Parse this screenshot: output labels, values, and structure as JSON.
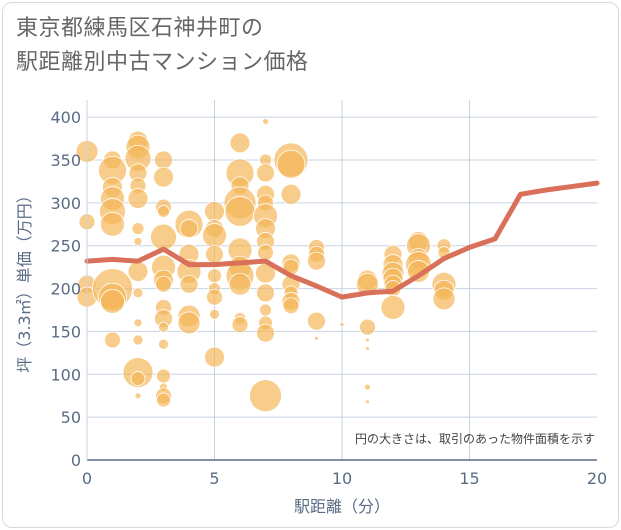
{
  "chart_data": {
    "type": "scatter",
    "title_lines": [
      "東京都練馬区石神井町の",
      "駅距離別中古マンション価格"
    ],
    "xlabel": "駅距離（分）",
    "ylabel": "坪（3.3㎡）単価（万円）",
    "xlim": [
      0,
      20
    ],
    "ylim": [
      0,
      420
    ],
    "x_ticks": [
      0,
      5,
      10,
      15,
      20
    ],
    "y_ticks": [
      0,
      50,
      100,
      150,
      200,
      250,
      300,
      350,
      400
    ],
    "note": "円の大きさは、取引のあった物件面積を示す",
    "colors": {
      "bubble": "#f5b65a",
      "line": "#d9705a",
      "grid": "#c8d3e0"
    },
    "average_line": {
      "x": [
        0,
        1,
        2,
        3,
        4,
        5,
        6,
        7,
        8,
        9,
        10,
        11,
        12,
        13,
        14,
        15,
        16,
        17,
        18,
        19,
        20
      ],
      "y": [
        232,
        234,
        232,
        246,
        228,
        228,
        230,
        232,
        215,
        203,
        190,
        195,
        197,
        215,
        235,
        248,
        258,
        310,
        315,
        319,
        323
      ]
    },
    "bubbles": [
      {
        "x": 0,
        "y": 360,
        "s": 11
      },
      {
        "x": 0,
        "y": 278,
        "s": 8
      },
      {
        "x": 0,
        "y": 205,
        "s": 9
      },
      {
        "x": 0,
        "y": 190,
        "s": 10
      },
      {
        "x": 1,
        "y": 350,
        "s": 9
      },
      {
        "x": 1,
        "y": 338,
        "s": 14
      },
      {
        "x": 1,
        "y": 318,
        "s": 10
      },
      {
        "x": 1,
        "y": 305,
        "s": 12
      },
      {
        "x": 1,
        "y": 290,
        "s": 13
      },
      {
        "x": 1,
        "y": 275,
        "s": 12
      },
      {
        "x": 1,
        "y": 200,
        "s": 20
      },
      {
        "x": 1,
        "y": 190,
        "s": 14
      },
      {
        "x": 1,
        "y": 185,
        "s": 12
      },
      {
        "x": 1,
        "y": 140,
        "s": 8
      },
      {
        "x": 2,
        "y": 372,
        "s": 10
      },
      {
        "x": 2,
        "y": 365,
        "s": 12
      },
      {
        "x": 2,
        "y": 352,
        "s": 13
      },
      {
        "x": 2,
        "y": 335,
        "s": 9
      },
      {
        "x": 2,
        "y": 320,
        "s": 8
      },
      {
        "x": 2,
        "y": 305,
        "s": 10
      },
      {
        "x": 2,
        "y": 270,
        "s": 6
      },
      {
        "x": 2,
        "y": 255,
        "s": 4
      },
      {
        "x": 2,
        "y": 220,
        "s": 10
      },
      {
        "x": 2,
        "y": 195,
        "s": 5
      },
      {
        "x": 2,
        "y": 160,
        "s": 4
      },
      {
        "x": 2,
        "y": 140,
        "s": 5
      },
      {
        "x": 2,
        "y": 102,
        "s": 15
      },
      {
        "x": 2,
        "y": 95,
        "s": 7
      },
      {
        "x": 2,
        "y": 75,
        "s": 3
      },
      {
        "x": 3,
        "y": 350,
        "s": 9
      },
      {
        "x": 3,
        "y": 330,
        "s": 10
      },
      {
        "x": 3,
        "y": 295,
        "s": 8
      },
      {
        "x": 3,
        "y": 290,
        "s": 6
      },
      {
        "x": 3,
        "y": 260,
        "s": 13
      },
      {
        "x": 3,
        "y": 225,
        "s": 12
      },
      {
        "x": 3,
        "y": 210,
        "s": 10
      },
      {
        "x": 3,
        "y": 205,
        "s": 8
      },
      {
        "x": 3,
        "y": 178,
        "s": 8
      },
      {
        "x": 3,
        "y": 165,
        "s": 9
      },
      {
        "x": 3,
        "y": 155,
        "s": 5
      },
      {
        "x": 3,
        "y": 135,
        "s": 5
      },
      {
        "x": 3,
        "y": 98,
        "s": 7
      },
      {
        "x": 3,
        "y": 85,
        "s": 4
      },
      {
        "x": 3,
        "y": 75,
        "s": 8
      },
      {
        "x": 3,
        "y": 70,
        "s": 7
      },
      {
        "x": 4,
        "y": 275,
        "s": 14
      },
      {
        "x": 4,
        "y": 270,
        "s": 9
      },
      {
        "x": 4,
        "y": 240,
        "s": 10
      },
      {
        "x": 4,
        "y": 220,
        "s": 12
      },
      {
        "x": 4,
        "y": 205,
        "s": 9
      },
      {
        "x": 4,
        "y": 168,
        "s": 11
      },
      {
        "x": 4,
        "y": 160,
        "s": 11
      },
      {
        "x": 5,
        "y": 290,
        "s": 10
      },
      {
        "x": 5,
        "y": 270,
        "s": 9
      },
      {
        "x": 5,
        "y": 262,
        "s": 12
      },
      {
        "x": 5,
        "y": 240,
        "s": 9
      },
      {
        "x": 5,
        "y": 215,
        "s": 7
      },
      {
        "x": 5,
        "y": 200,
        "s": 6
      },
      {
        "x": 5,
        "y": 190,
        "s": 8
      },
      {
        "x": 5,
        "y": 170,
        "s": 5
      },
      {
        "x": 5,
        "y": 120,
        "s": 10
      },
      {
        "x": 6,
        "y": 370,
        "s": 10
      },
      {
        "x": 6,
        "y": 335,
        "s": 14
      },
      {
        "x": 6,
        "y": 320,
        "s": 9
      },
      {
        "x": 6,
        "y": 300,
        "s": 16
      },
      {
        "x": 6,
        "y": 290,
        "s": 15
      },
      {
        "x": 6,
        "y": 245,
        "s": 12
      },
      {
        "x": 6,
        "y": 225,
        "s": 11
      },
      {
        "x": 6,
        "y": 215,
        "s": 14
      },
      {
        "x": 6,
        "y": 205,
        "s": 11
      },
      {
        "x": 6,
        "y": 165,
        "s": 6
      },
      {
        "x": 6,
        "y": 158,
        "s": 8
      },
      {
        "x": 7,
        "y": 395,
        "s": 3
      },
      {
        "x": 7,
        "y": 350,
        "s": 6
      },
      {
        "x": 7,
        "y": 335,
        "s": 9
      },
      {
        "x": 7,
        "y": 310,
        "s": 9
      },
      {
        "x": 7,
        "y": 300,
        "s": 8
      },
      {
        "x": 7,
        "y": 285,
        "s": 12
      },
      {
        "x": 7,
        "y": 270,
        "s": 10
      },
      {
        "x": 7,
        "y": 255,
        "s": 9
      },
      {
        "x": 7,
        "y": 242,
        "s": 8
      },
      {
        "x": 7,
        "y": 218,
        "s": 10
      },
      {
        "x": 7,
        "y": 195,
        "s": 9
      },
      {
        "x": 7,
        "y": 175,
        "s": 6
      },
      {
        "x": 7,
        "y": 160,
        "s": 7
      },
      {
        "x": 7,
        "y": 148,
        "s": 9
      },
      {
        "x": 7,
        "y": 75,
        "s": 16
      },
      {
        "x": 8,
        "y": 350,
        "s": 17
      },
      {
        "x": 8,
        "y": 345,
        "s": 14
      },
      {
        "x": 8,
        "y": 310,
        "s": 10
      },
      {
        "x": 8,
        "y": 230,
        "s": 9
      },
      {
        "x": 8,
        "y": 225,
        "s": 8
      },
      {
        "x": 8,
        "y": 205,
        "s": 9
      },
      {
        "x": 8,
        "y": 195,
        "s": 7
      },
      {
        "x": 8,
        "y": 185,
        "s": 9
      },
      {
        "x": 8,
        "y": 180,
        "s": 8
      },
      {
        "x": 9,
        "y": 248,
        "s": 8
      },
      {
        "x": 9,
        "y": 240,
        "s": 8
      },
      {
        "x": 9,
        "y": 232,
        "s": 9
      },
      {
        "x": 9,
        "y": 162,
        "s": 9
      },
      {
        "x": 9,
        "y": 142,
        "s": 2
      },
      {
        "x": 10,
        "y": 158,
        "s": 2
      },
      {
        "x": 11,
        "y": 210,
        "s": 10
      },
      {
        "x": 11,
        "y": 205,
        "s": 11
      },
      {
        "x": 11,
        "y": 155,
        "s": 8
      },
      {
        "x": 11,
        "y": 140,
        "s": 2
      },
      {
        "x": 11,
        "y": 130,
        "s": 2
      },
      {
        "x": 11,
        "y": 85,
        "s": 3
      },
      {
        "x": 11,
        "y": 68,
        "s": 2
      },
      {
        "x": 12,
        "y": 240,
        "s": 9
      },
      {
        "x": 12,
        "y": 228,
        "s": 10
      },
      {
        "x": 12,
        "y": 218,
        "s": 11
      },
      {
        "x": 12,
        "y": 212,
        "s": 10
      },
      {
        "x": 12,
        "y": 205,
        "s": 9
      },
      {
        "x": 12,
        "y": 200,
        "s": 8
      },
      {
        "x": 12,
        "y": 178,
        "s": 12
      },
      {
        "x": 13,
        "y": 255,
        "s": 10
      },
      {
        "x": 13,
        "y": 250,
        "s": 12
      },
      {
        "x": 13,
        "y": 235,
        "s": 10
      },
      {
        "x": 13,
        "y": 228,
        "s": 13
      },
      {
        "x": 13,
        "y": 220,
        "s": 11
      },
      {
        "x": 14,
        "y": 250,
        "s": 7
      },
      {
        "x": 14,
        "y": 242,
        "s": 6
      },
      {
        "x": 14,
        "y": 205,
        "s": 12
      },
      {
        "x": 14,
        "y": 198,
        "s": 10
      },
      {
        "x": 14,
        "y": 188,
        "s": 11
      }
    ]
  }
}
